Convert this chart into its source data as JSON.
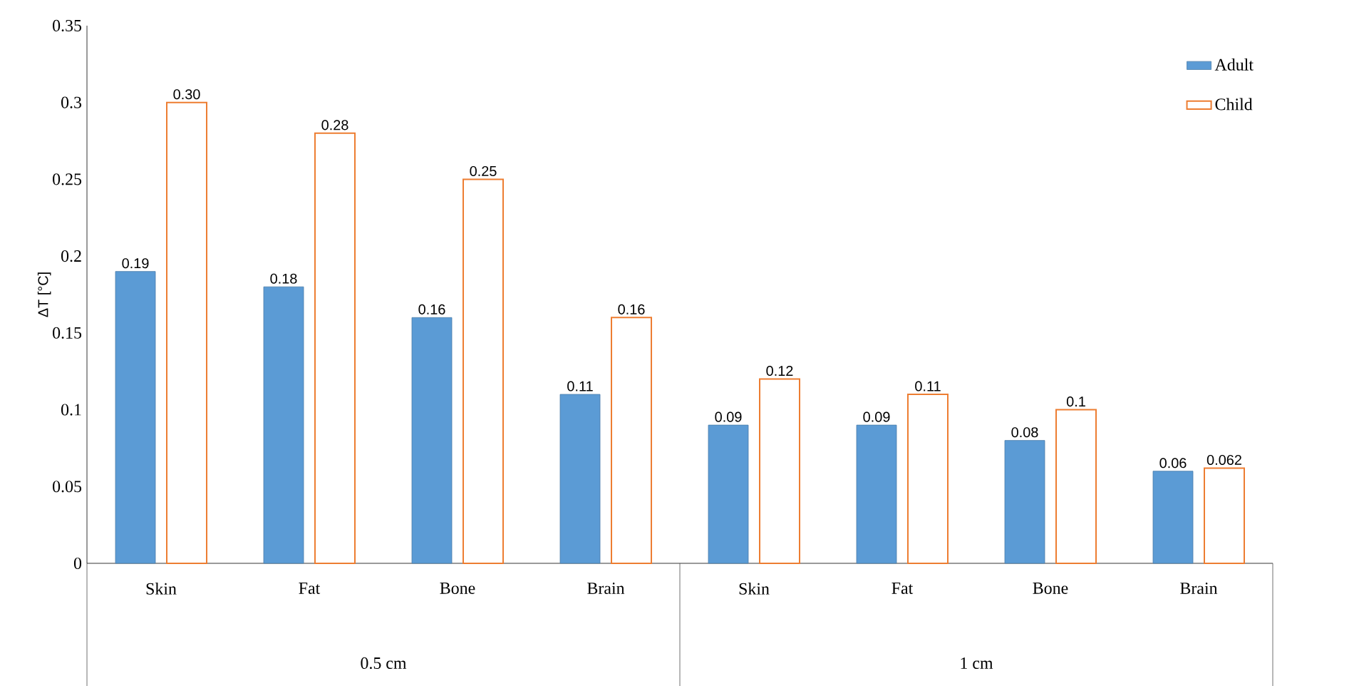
{
  "chart_data": {
    "type": "bar",
    "ylabel": "ΔT [°C]",
    "categories": [
      "Skin",
      "Fat",
      "Bone",
      "Brain",
      "Skin",
      "Fat",
      "Bone",
      "Brain"
    ],
    "series": [
      {
        "name": "Adult",
        "color": "#5b9bd5",
        "values": [
          0.19,
          0.18,
          0.16,
          0.11,
          0.09,
          0.09,
          0.08,
          0.06
        ],
        "value_labels": [
          "0.19",
          "0.18",
          "0.16",
          "0.11",
          "0.09",
          "0.09",
          "0.08",
          "0.06"
        ]
      },
      {
        "name": "Child",
        "color": "#ed7d31",
        "values": [
          0.3,
          0.28,
          0.25,
          0.16,
          0.12,
          0.11,
          0.1,
          0.062
        ],
        "value_labels": [
          "0.30",
          "0.28",
          "0.25",
          "0.16",
          "0.12",
          "0.11",
          "0.1",
          "0.062"
        ]
      }
    ],
    "annotations": [
      "0.5 cm",
      "1 cm"
    ],
    "ylim": [
      0,
      0.35
    ],
    "yticks": [
      0,
      0.05,
      0.1,
      0.15,
      0.2,
      0.25,
      0.3,
      0.35
    ],
    "grid": false,
    "legend": "top right"
  }
}
